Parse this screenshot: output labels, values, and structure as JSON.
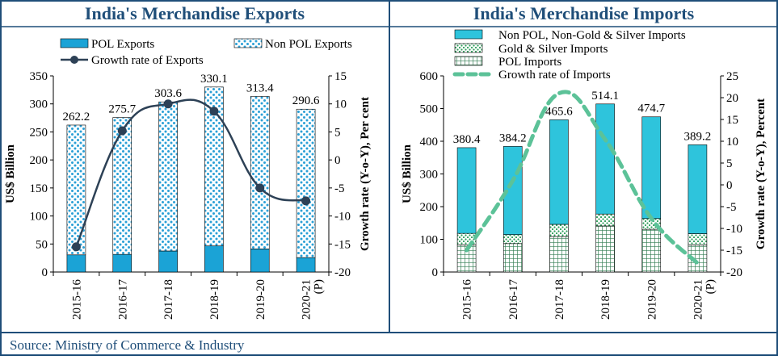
{
  "left_panel": {
    "title": "India's Merchandise Exports"
  },
  "right_panel": {
    "title": "India's Merchandise Imports"
  },
  "source": "Source: Ministry of Commerce & Industry",
  "colors": {
    "border": "#1f4e79",
    "pol_exports": "#1ba3d6",
    "non_pol_dots": "#2a9fd6",
    "exports_growth_line": "#2d4156",
    "non_pol_imports": "#2ec4dc",
    "gold_silver": "#2e9e5b",
    "pol_imports": "#2e7a4f",
    "imports_growth_line": "#5cc298"
  },
  "chart_data": [
    {
      "type": "bar",
      "title": "India's Merchandise Exports",
      "categories": [
        "2015-16",
        "2016-17",
        "2017-18",
        "2018-19",
        "2019-20",
        "2020-21 (P)"
      ],
      "series": [
        {
          "name": "POL Exports",
          "values": [
            30.6,
            31.5,
            37.5,
            46.6,
            41.3,
            25.8
          ],
          "kind": "stacked-bar"
        },
        {
          "name": "Non POL Exports",
          "values": [
            231.6,
            244.2,
            266.1,
            283.5,
            272.1,
            264.8
          ],
          "kind": "stacked-bar"
        },
        {
          "name": "Growth rate of Exports",
          "values": [
            -15.5,
            5.2,
            10.0,
            8.7,
            -5.0,
            -7.3
          ],
          "kind": "line",
          "axis": "right"
        }
      ],
      "totals": [
        262.2,
        275.7,
        303.6,
        330.1,
        313.4,
        290.6
      ],
      "total_labels": [
        "262.2",
        "275.7",
        "303.6",
        "330.1",
        "313.4",
        "290.6"
      ],
      "ylabel": "US$ Billion",
      "y2label": "Growth rate (Y-o-Y), Per cent",
      "ylim": [
        0,
        350
      ],
      "y2lim": [
        -20,
        15
      ],
      "y_ticks": [
        "0",
        "50",
        "100",
        "150",
        "200",
        "250",
        "300",
        "350"
      ],
      "y2_ticks": [
        "-20",
        "-15",
        "-10",
        "-5",
        "0",
        "5",
        "10",
        "15"
      ],
      "legend": "top"
    },
    {
      "type": "bar",
      "title": "India's Merchandise Imports",
      "categories": [
        "2015-16",
        "2016-17",
        "2017-18",
        "2018-19",
        "2019-20",
        "2020-21 (P)"
      ],
      "series": [
        {
          "name": "POL Imports",
          "values": [
            82.9,
            86.9,
            108.7,
            140.9,
            130.6,
            82.7
          ],
          "kind": "stacked-bar"
        },
        {
          "name": "Gold & Silver Imports",
          "values": [
            35.2,
            27.5,
            37.1,
            36.4,
            32.9,
            34.6
          ],
          "kind": "stacked-bar"
        },
        {
          "name": "Non POL, Non-Gold & Silver Imports",
          "values": [
            262.3,
            269.8,
            319.8,
            336.8,
            311.2,
            271.9
          ],
          "kind": "stacked-bar"
        },
        {
          "name": "Growth rate of Imports",
          "values": [
            -15.0,
            1.0,
            21.0,
            10.4,
            -7.7,
            -18.0
          ],
          "kind": "line",
          "axis": "right"
        }
      ],
      "totals": [
        380.4,
        384.2,
        465.6,
        514.1,
        474.7,
        389.2
      ],
      "total_labels": [
        "380.4",
        "384.2",
        "465.6",
        "514.1",
        "474.7",
        "389.2"
      ],
      "ylabel": "US$ Billion",
      "y2label": "Growth rate (Y-o-Y), Percent",
      "ylim": [
        0,
        600
      ],
      "y2lim": [
        -20,
        25
      ],
      "y_ticks": [
        "0",
        "100",
        "200",
        "300",
        "400",
        "500",
        "600"
      ],
      "y2_ticks": [
        "-20",
        "-15",
        "-10",
        "-5",
        "0",
        "5",
        "10",
        "15",
        "20",
        "25"
      ],
      "legend": "top"
    }
  ]
}
